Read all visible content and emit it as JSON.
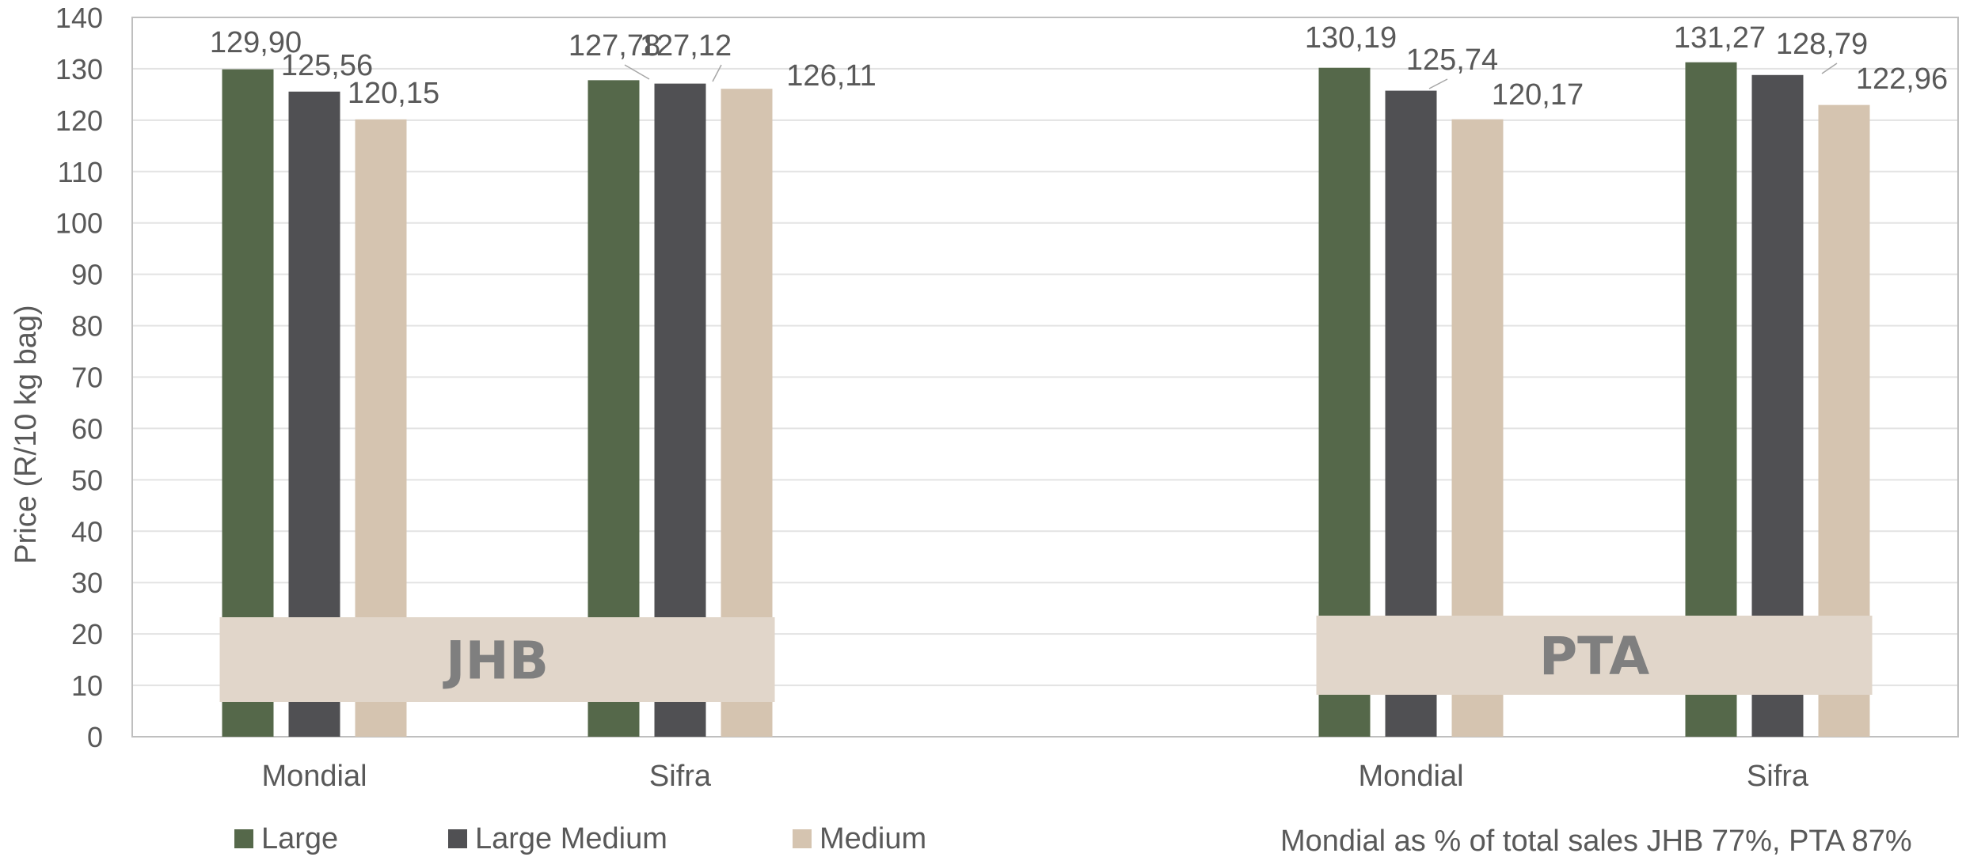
{
  "chart_data": {
    "type": "bar",
    "ylabel": "Price (R/10 kg bag)",
    "ylim": [
      0,
      140
    ],
    "ytick_step": 10,
    "grid": true,
    "legend_position": "bottom-left",
    "groups": [
      {
        "region": "JHB",
        "categories": [
          {
            "name": "Mondial",
            "values": [
              129.9,
              125.56,
              120.15
            ],
            "labels": [
              "129,90",
              "125,56",
              "120,15"
            ]
          },
          {
            "name": "Sifra",
            "values": [
              127.78,
              127.12,
              126.11
            ],
            "labels": [
              "127,78",
              "127,12",
              "126,11"
            ]
          }
        ]
      },
      {
        "region": "PTA",
        "categories": [
          {
            "name": "Mondial",
            "values": [
              130.19,
              125.74,
              120.17
            ],
            "labels": [
              "130,19",
              "125,74",
              "120,17"
            ]
          },
          {
            "name": "Sifra",
            "values": [
              131.27,
              128.79,
              122.96
            ],
            "labels": [
              "131,27",
              "128,79",
              "122,96"
            ]
          }
        ]
      }
    ],
    "series": [
      {
        "name": "Large",
        "color": "#55684a"
      },
      {
        "name": "Large Medium",
        "color": "#505053"
      },
      {
        "name": "Medium",
        "color": "#d5c4b0"
      }
    ],
    "region_box_color": "#e1d6ca",
    "note": "Mondial as % of total sales JHB 77%, PTA 87%"
  }
}
